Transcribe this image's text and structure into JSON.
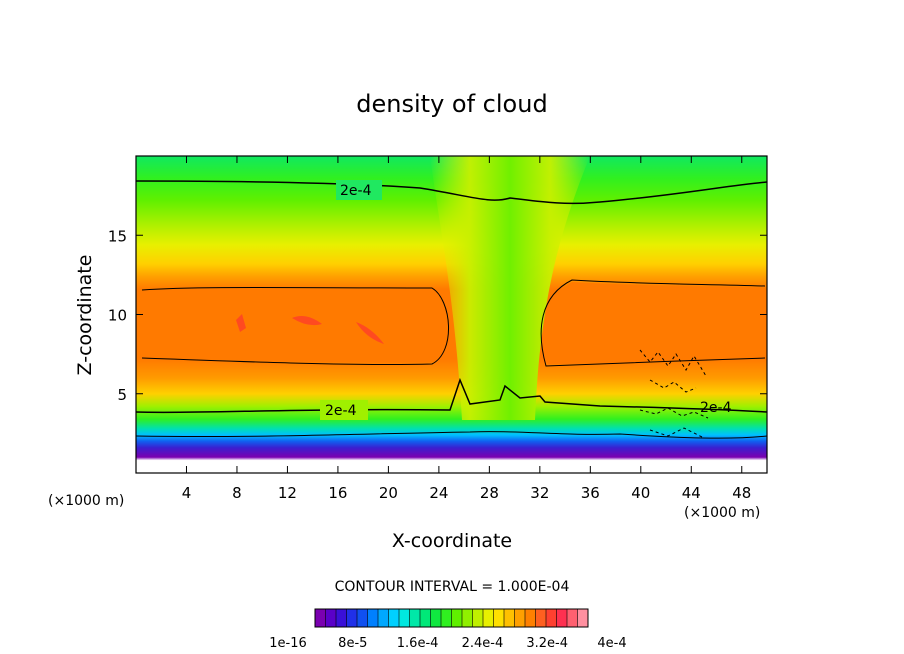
{
  "chart_data": {
    "type": "heatmap",
    "title": "density of cloud",
    "xlabel": "X-coordinate",
    "ylabel": "Z-coordinate",
    "x_unit_note": "(×1000 m)",
    "x_unit_note_right": "(×1000 m)",
    "xlim": [
      0,
      50
    ],
    "ylim": [
      0,
      20
    ],
    "x_ticks": [
      4,
      8,
      12,
      16,
      20,
      24,
      28,
      32,
      36,
      40,
      44,
      48
    ],
    "y_ticks": [
      5,
      10,
      15
    ],
    "contour_interval_text": "CONTOUR INTERVAL = 1.000E-04",
    "contour_labels": [
      "2e-4",
      "2e-4",
      "2e-4"
    ],
    "colorbar": {
      "labels": [
        "1e-16",
        "8e-5",
        "1.6e-4",
        "2.4e-4",
        "3.2e-4",
        "4e-4"
      ],
      "colors": [
        "#7a00b0",
        "#5a00c8",
        "#3a10d8",
        "#2030e8",
        "#1050f0",
        "#0080ff",
        "#00a8ff",
        "#00d0ff",
        "#00e8e0",
        "#00e8a8",
        "#00e878",
        "#10e840",
        "#30f020",
        "#60f000",
        "#90f000",
        "#c0f000",
        "#e8f000",
        "#ffe000",
        "#ffc000",
        "#ffa000",
        "#ff8000",
        "#ff6020",
        "#ff4030",
        "#ff3050",
        "#ff6070",
        "#ff90a0"
      ]
    }
  }
}
